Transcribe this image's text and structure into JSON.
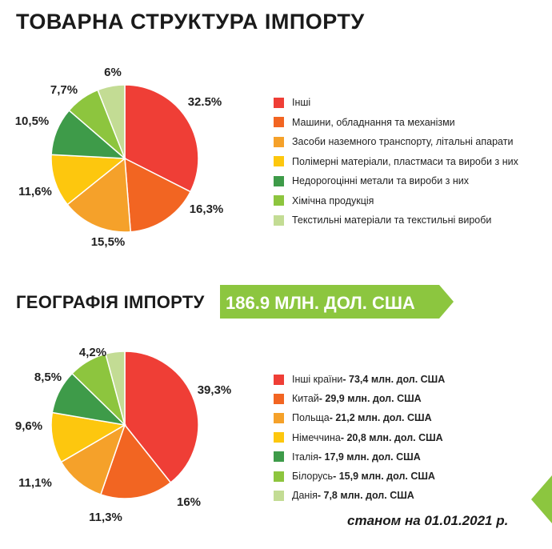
{
  "section1": {
    "title": "ТОВАРНА СТРУКТУРА ІМПОРТУ"
  },
  "section2": {
    "title": "ГЕОГРАФІЯ ІМПОРТУ",
    "total": "186.9  МЛН. ДОЛ. США",
    "total_badge_color": "#8cc63f"
  },
  "footer": {
    "date_note": "станом на 01.01.2021 р."
  },
  "chart_data": [
    {
      "type": "pie",
      "title": "ТОВАРНА СТРУКТУРА ІМПОРТУ",
      "legend_position": "right",
      "slices": [
        {
          "label": "Інші",
          "value": 32.5,
          "value_label": "32.5%",
          "color": "#ef3e36"
        },
        {
          "label": "Машини, обладнання та механізми",
          "value": 16.3,
          "value_label": "16,3%",
          "color": "#f26522"
        },
        {
          "label": "Засоби наземного транспорту, літальні апарати",
          "value": 15.5,
          "value_label": "15,5%",
          "color": "#f5a12a"
        },
        {
          "label": "Полімерні матеріали, пластмаси та вироби з них",
          "value": 11.6,
          "value_label": "11,6%",
          "color": "#fdc70e"
        },
        {
          "label": "Недорогоцінні метали та вироби з них",
          "value": 10.5,
          "value_label": "10,5%",
          "color": "#3e9b49"
        },
        {
          "label": "Хімічна продукція",
          "value": 7.7,
          "value_label": "7,7%",
          "color": "#8dc53e"
        },
        {
          "label": "Текстильні матеріали та текстильні вироби",
          "value": 6,
          "value_label": "6%",
          "color": "#c3dc94"
        }
      ]
    },
    {
      "type": "pie",
      "title": "ГЕОГРАФІЯ ІМПОРТУ",
      "legend_position": "right",
      "slices": [
        {
          "label": "Інші країни",
          "legend_value": " - 73,4 млн. дол. США",
          "value": 39.3,
          "value_label": "39,3%",
          "color": "#ef3e36"
        },
        {
          "label": "Китай",
          "legend_value": " - 29,9 млн. дол. США",
          "value": 16,
          "value_label": "16%",
          "color": "#f26522"
        },
        {
          "label": "Польща",
          "legend_value": " - 21,2 млн. дол. США",
          "value": 11.3,
          "value_label": "11,3%",
          "color": "#f5a12a"
        },
        {
          "label": "Німеччина",
          "legend_value": " - 20,8 млн. дол. США",
          "value": 11.1,
          "value_label": "11,1%",
          "color": "#fdc70e"
        },
        {
          "label": "Італія",
          "legend_value": " - 17,9 млн. дол. США",
          "value": 9.6,
          "value_label": "9,6%",
          "color": "#3e9b49"
        },
        {
          "label": "Білорусь",
          "legend_value": " - 15,9 млн. дол. США",
          "value": 8.5,
          "value_label": "8,5%",
          "color": "#8dc53e"
        },
        {
          "label": "Данія",
          "legend_value": " - 7,8 млн. дол. США",
          "value": 4.2,
          "value_label": "4,2%",
          "color": "#c3dc94"
        }
      ]
    }
  ]
}
